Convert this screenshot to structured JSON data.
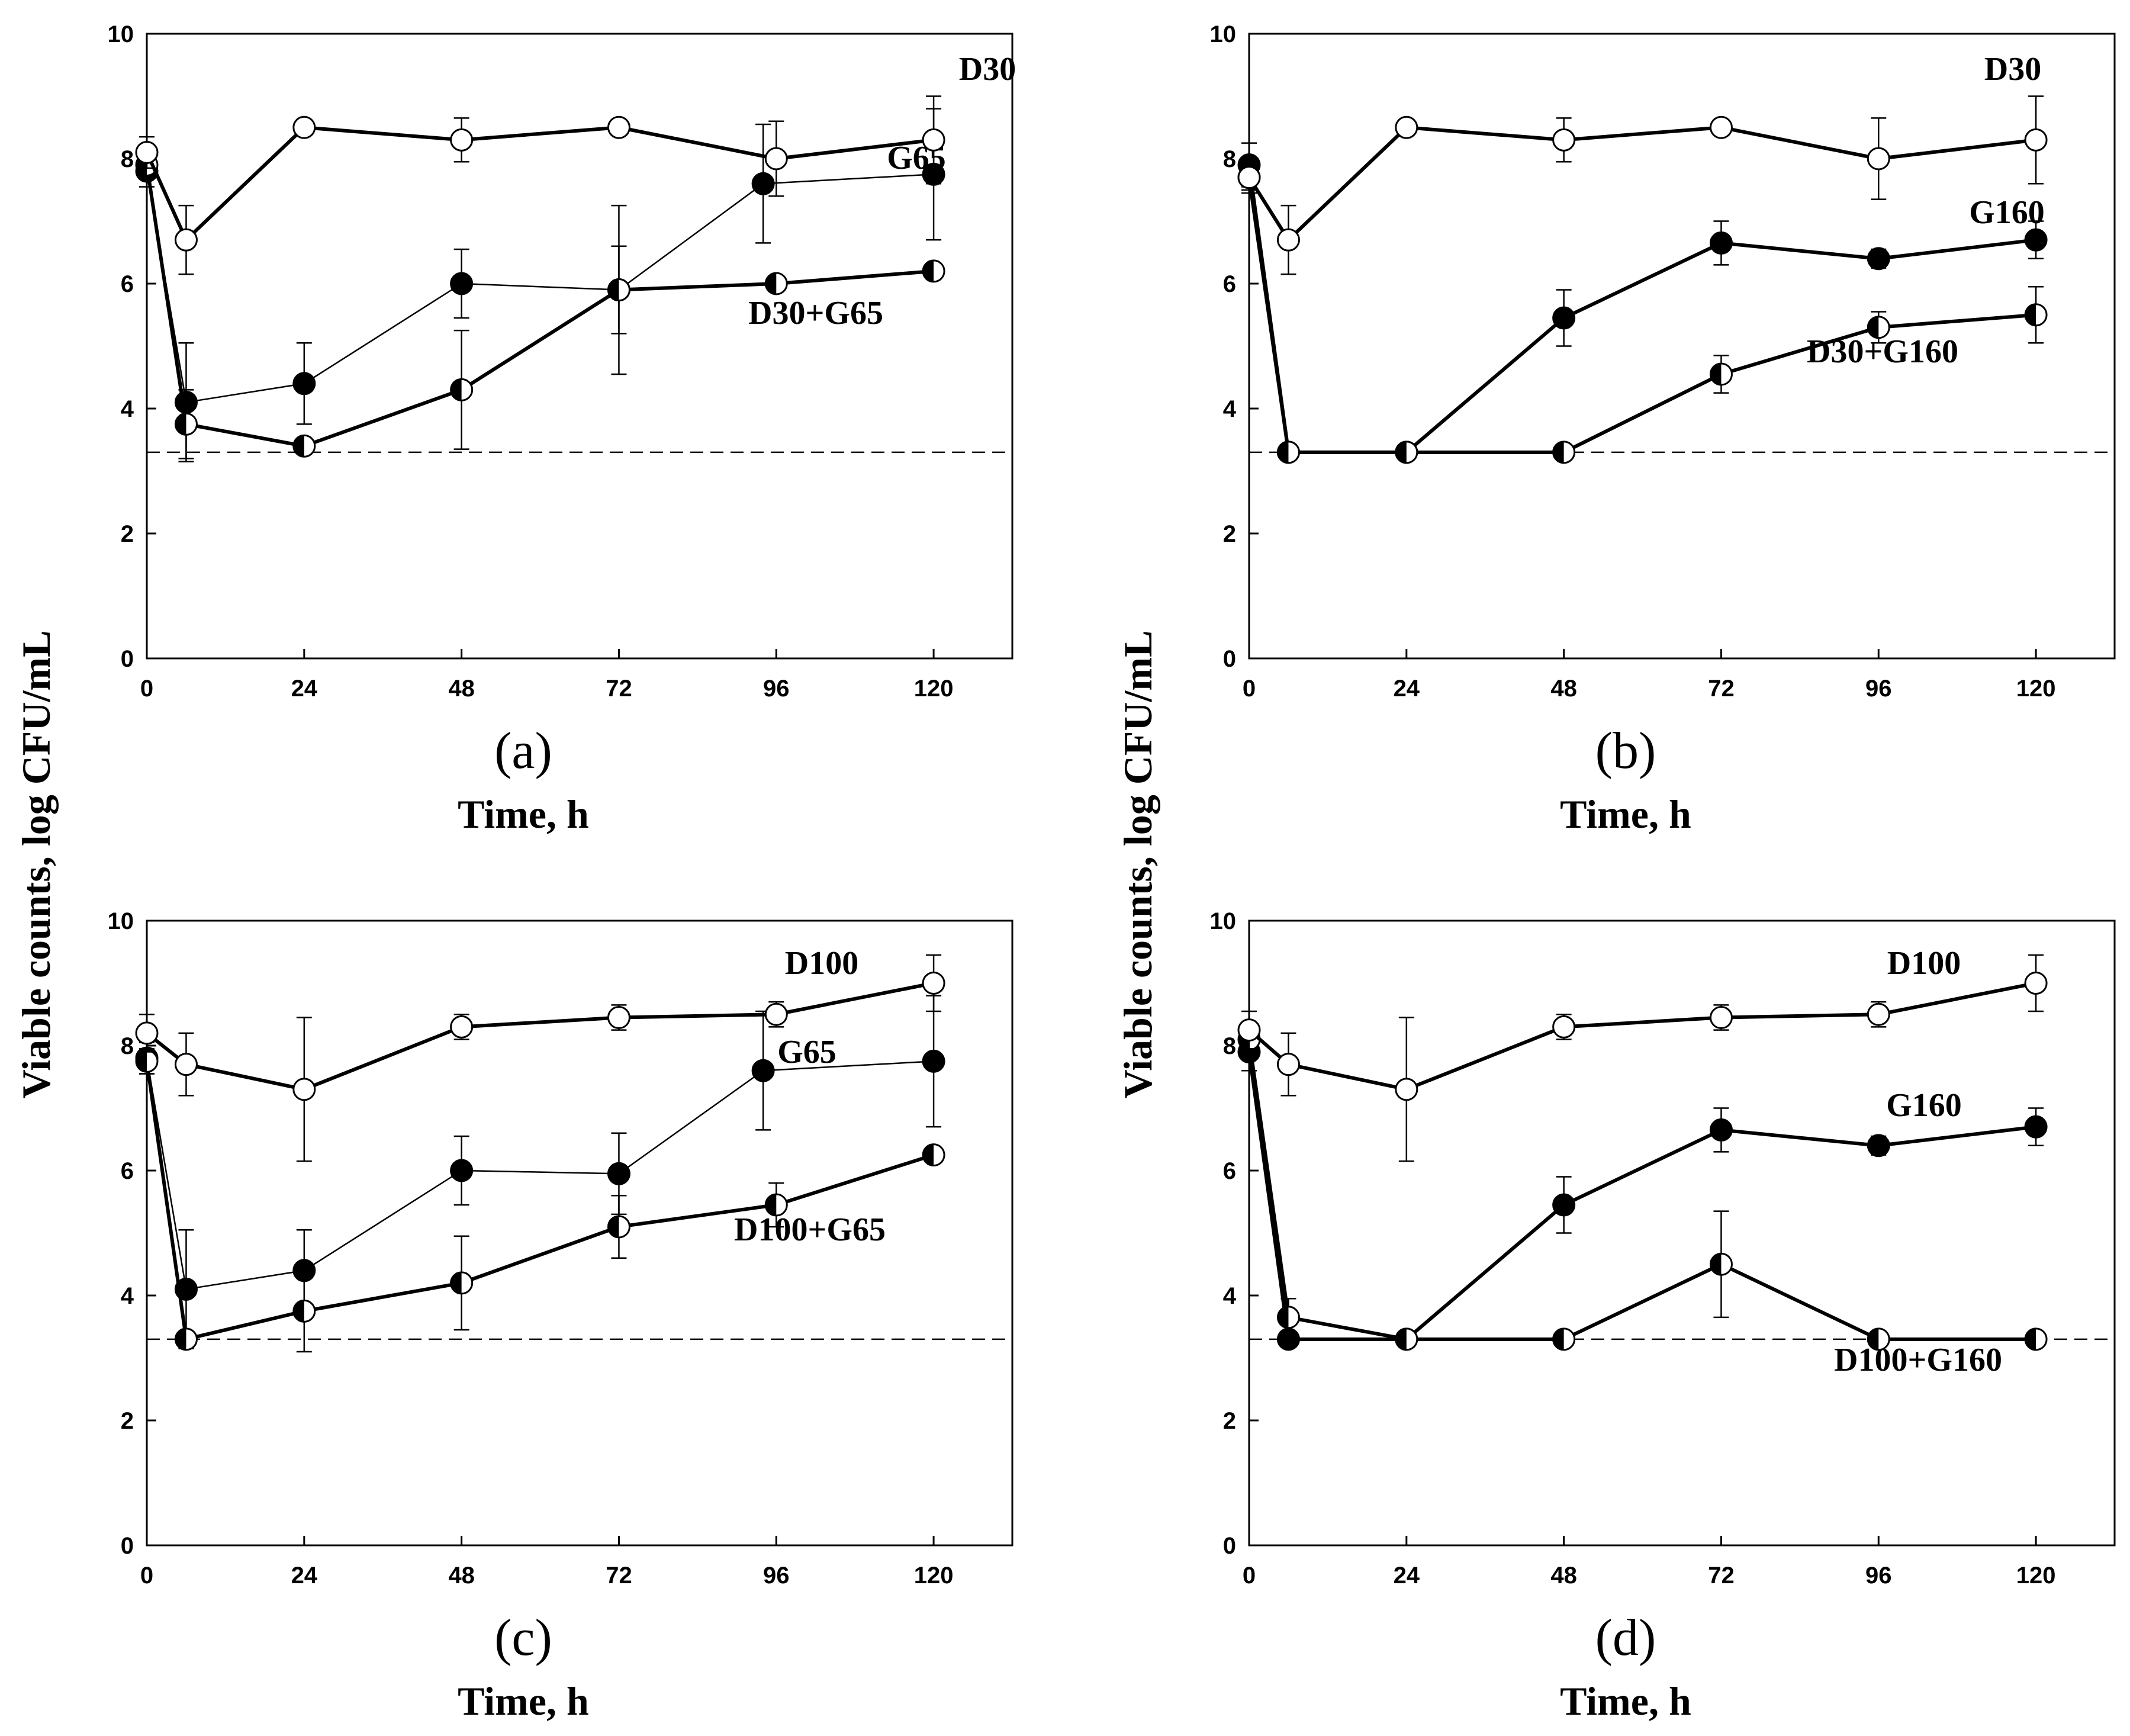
{
  "ylabel": "Viable counts,  log CFU/mL",
  "chart_data": [
    {
      "type": "line",
      "panel_letter": "(a)",
      "xlabel": "Time, h",
      "ylabel": "Viable counts,  log CFU/mL",
      "xlim": [
        0,
        132
      ],
      "ylim": [
        0,
        10
      ],
      "x_ticks": [
        0,
        24,
        48,
        72,
        96,
        120
      ],
      "y_ticks": [
        0,
        2,
        4,
        6,
        8,
        10
      ],
      "detection_limit": 3.3,
      "series": [
        {
          "name": "D30",
          "marker": "open",
          "line": "thick",
          "x": [
            0,
            6,
            24,
            48,
            72,
            96,
            120
          ],
          "y": [
            8.1,
            6.7,
            8.5,
            8.3,
            8.5,
            8.0,
            8.3
          ],
          "err": [
            0.25,
            0.55,
            0,
            0.35,
            0,
            0.6,
            0.7
          ]
        },
        {
          "name": "G65",
          "marker": "filled",
          "line": "thin",
          "x": [
            0,
            6,
            24,
            48,
            72,
            94,
            120
          ],
          "y": [
            7.8,
            4.1,
            4.4,
            6.0,
            5.9,
            7.6,
            7.75
          ],
          "err": [
            0.25,
            0.95,
            0.65,
            0.55,
            1.35,
            0.95,
            1.05
          ]
        },
        {
          "name": "D30+G65",
          "marker": "half",
          "line": "thick",
          "x": [
            0,
            6,
            24,
            48,
            72,
            96,
            120
          ],
          "y": [
            7.9,
            3.75,
            3.4,
            4.3,
            5.9,
            6.0,
            6.2
          ],
          "err": [
            0.2,
            0.55,
            0,
            0.95,
            0.7,
            0,
            0
          ]
        }
      ]
    },
    {
      "type": "line",
      "panel_letter": "(b)",
      "xlabel": "Time, h",
      "ylabel": "Viable counts,  log CFU/mL",
      "xlim": [
        0,
        132
      ],
      "ylim": [
        0,
        10
      ],
      "x_ticks": [
        0,
        24,
        48,
        72,
        96,
        120
      ],
      "y_ticks": [
        0,
        2,
        4,
        6,
        8,
        10
      ],
      "detection_limit": 3.3,
      "series": [
        {
          "name": "D30",
          "marker": "open",
          "line": "thick",
          "x": [
            0,
            6,
            24,
            48,
            72,
            96,
            120
          ],
          "y": [
            7.7,
            6.7,
            8.5,
            8.3,
            8.5,
            8.0,
            8.3
          ],
          "err": [
            0.25,
            0.55,
            0,
            0.35,
            0,
            0.65,
            0.7
          ]
        },
        {
          "name": "G160",
          "marker": "filled",
          "line": "thick",
          "x": [
            0,
            6,
            24,
            48,
            72,
            96,
            120
          ],
          "y": [
            7.9,
            3.3,
            3.3,
            5.45,
            6.65,
            6.4,
            6.7
          ],
          "err": [
            0.35,
            0,
            0,
            0.45,
            0.35,
            0.15,
            0.3
          ]
        },
        {
          "name": "D30+G160",
          "marker": "half",
          "line": "thick",
          "x": [
            0,
            6,
            24,
            48,
            72,
            96,
            120
          ],
          "y": [
            7.7,
            3.3,
            3.3,
            3.3,
            4.55,
            5.3,
            5.5
          ],
          "err": [
            0.2,
            0,
            0,
            0,
            0.3,
            0.25,
            0.45
          ]
        }
      ]
    },
    {
      "type": "line",
      "panel_letter": "(c)",
      "xlabel": "Time, h",
      "ylabel": "Viable counts,  log CFU/mL",
      "xlim": [
        0,
        132
      ],
      "ylim": [
        0,
        10
      ],
      "x_ticks": [
        0,
        24,
        48,
        72,
        96,
        120
      ],
      "y_ticks": [
        0,
        2,
        4,
        6,
        8,
        10
      ],
      "detection_limit": 3.3,
      "series": [
        {
          "name": "D100",
          "marker": "open",
          "line": "thick",
          "x": [
            0,
            6,
            24,
            48,
            72,
            96,
            120
          ],
          "y": [
            8.2,
            7.7,
            7.3,
            8.3,
            8.45,
            8.5,
            9.0
          ],
          "err": [
            0.3,
            0.5,
            1.15,
            0.2,
            0.2,
            0.2,
            0.45
          ]
        },
        {
          "name": "G65",
          "marker": "filled",
          "line": "thin",
          "x": [
            0,
            6,
            24,
            48,
            72,
            94,
            120
          ],
          "y": [
            7.8,
            4.1,
            4.4,
            6.0,
            5.95,
            7.6,
            7.75
          ],
          "err": [
            0.25,
            0.95,
            0.65,
            0.55,
            0.65,
            0.95,
            1.05
          ]
        },
        {
          "name": "D100+G65",
          "marker": "half",
          "line": "thick",
          "x": [
            0,
            6,
            24,
            48,
            72,
            96,
            120
          ],
          "y": [
            7.75,
            3.3,
            3.75,
            4.2,
            5.1,
            5.45,
            6.25
          ],
          "err": [
            0.2,
            0,
            0.65,
            0.75,
            0.5,
            0.35,
            0
          ]
        }
      ]
    },
    {
      "type": "line",
      "panel_letter": "(d)",
      "xlabel": "Time, h",
      "ylabel": "Viable counts,  log CFU/mL",
      "xlim": [
        0,
        132
      ],
      "ylim": [
        0,
        10
      ],
      "x_ticks": [
        0,
        24,
        48,
        72,
        96,
        120
      ],
      "y_ticks": [
        0,
        2,
        4,
        6,
        8,
        10
      ],
      "detection_limit": 3.3,
      "series": [
        {
          "name": "D100",
          "marker": "open",
          "line": "thick",
          "x": [
            0,
            6,
            24,
            48,
            72,
            96,
            120
          ],
          "y": [
            8.25,
            7.7,
            7.3,
            8.3,
            8.45,
            8.5,
            9.0
          ],
          "err": [
            0.3,
            0.5,
            1.15,
            0.2,
            0.2,
            0.2,
            0.45
          ]
        },
        {
          "name": "G160",
          "marker": "filled",
          "line": "thick",
          "x": [
            0,
            6,
            24,
            48,
            72,
            96,
            120
          ],
          "y": [
            7.9,
            3.3,
            3.3,
            5.45,
            6.65,
            6.4,
            6.7
          ],
          "err": [
            0.3,
            0,
            0,
            0.45,
            0.35,
            0.15,
            0.3
          ]
        },
        {
          "name": "D100+G160",
          "marker": "half",
          "line": "thick",
          "x": [
            0,
            6,
            24,
            48,
            72,
            96,
            120
          ],
          "y": [
            8.1,
            3.65,
            3.3,
            3.3,
            4.5,
            3.3,
            3.3
          ],
          "err": [
            0.2,
            0.3,
            0,
            0,
            0.85,
            0,
            0
          ]
        }
      ]
    }
  ]
}
